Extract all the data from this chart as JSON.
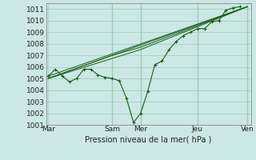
{
  "xlabel": "Pression niveau de la mer( hPa )",
  "ylim": [
    1001,
    1011.5
  ],
  "yticks": [
    1001,
    1002,
    1003,
    1004,
    1005,
    1006,
    1007,
    1008,
    1009,
    1010,
    1011
  ],
  "xtick_labels": [
    "Mar",
    "Sam",
    "Mer",
    "Jeu",
    "Ven"
  ],
  "xtick_positions": [
    0,
    9,
    13,
    21,
    28
  ],
  "xlim": [
    -0.3,
    28.5
  ],
  "background_color": "#cce8e4",
  "grid_color": "#99ccbb",
  "line_color": "#1a5c1a",
  "line1": [
    1005.2,
    1005.8,
    1005.2,
    1004.7,
    1005.0,
    1005.8,
    1005.8,
    1005.3,
    1005.1,
    1005.0,
    1004.8,
    1003.3,
    1001.2,
    1002.0,
    1003.9,
    1006.2,
    1006.5,
    1007.5,
    1008.2,
    1008.7,
    1009.0,
    1009.3,
    1009.3,
    1009.9,
    1010.0,
    1010.9,
    1011.1,
    1011.2
  ],
  "trend_lines": [
    {
      "x": [
        0,
        28
      ],
      "y": [
        1005.2,
        1011.2
      ]
    },
    {
      "x": [
        0,
        9,
        28
      ],
      "y": [
        1005.0,
        1007.0,
        1011.2
      ]
    },
    {
      "x": [
        0,
        9,
        13,
        28
      ],
      "y": [
        1005.0,
        1007.0,
        1007.7,
        1011.2
      ]
    },
    {
      "x": [
        0,
        13,
        28
      ],
      "y": [
        1005.0,
        1007.5,
        1011.2
      ]
    }
  ]
}
